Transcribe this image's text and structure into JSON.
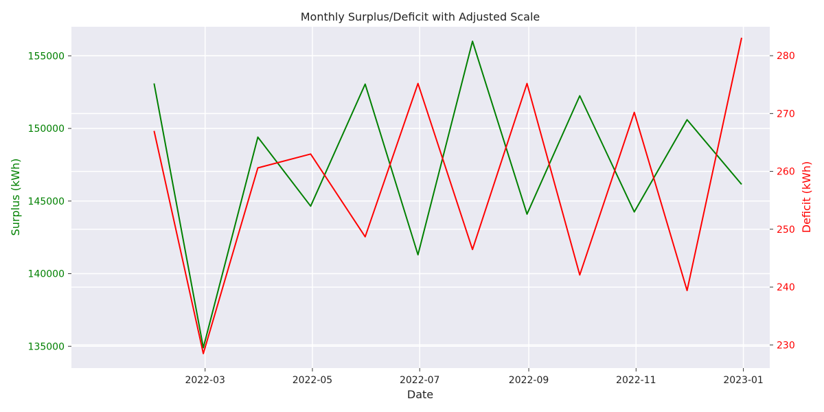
{
  "chart_data": {
    "type": "line",
    "title": "Monthly Surplus/Deficit with Adjusted Scale",
    "xlabel": "Date",
    "x": [
      "2022-01-31",
      "2022-02-28",
      "2022-03-31",
      "2022-04-30",
      "2022-05-31",
      "2022-06-30",
      "2022-07-31",
      "2022-08-31",
      "2022-09-30",
      "2022-10-31",
      "2022-11-30",
      "2022-12-31"
    ],
    "x_ticks": [
      "2022-03",
      "2022-05",
      "2022-07",
      "2022-09",
      "2022-11",
      "2023-01"
    ],
    "xlim": [
      "2021-12-15",
      "2023-01-16"
    ],
    "left_axis": {
      "label": "Surplus (kWh)",
      "color": "#008000",
      "ticks": [
        135000,
        140000,
        145000,
        150000,
        155000
      ],
      "ylim": [
        133500,
        157000
      ]
    },
    "right_axis": {
      "label": "Deficit (kWh)",
      "color": "#ff0000",
      "ticks": [
        230,
        240,
        250,
        260,
        270,
        280
      ],
      "ylim": [
        226,
        285
      ]
    },
    "series": [
      {
        "name": "Surplus (kWh)",
        "axis": "left",
        "color": "#008000",
        "values": [
          153100,
          134900,
          149400,
          144650,
          153050,
          141300,
          156000,
          144100,
          152250,
          144250,
          150600,
          146150
        ]
      },
      {
        "name": "Deficit (kWh)",
        "axis": "right",
        "color": "#ff0000",
        "values": [
          267.0,
          228.5,
          260.6,
          263.0,
          248.7,
          275.2,
          246.5,
          275.2,
          242.1,
          270.2,
          239.4,
          283.1
        ]
      }
    ],
    "grid": true,
    "legend": "none"
  }
}
